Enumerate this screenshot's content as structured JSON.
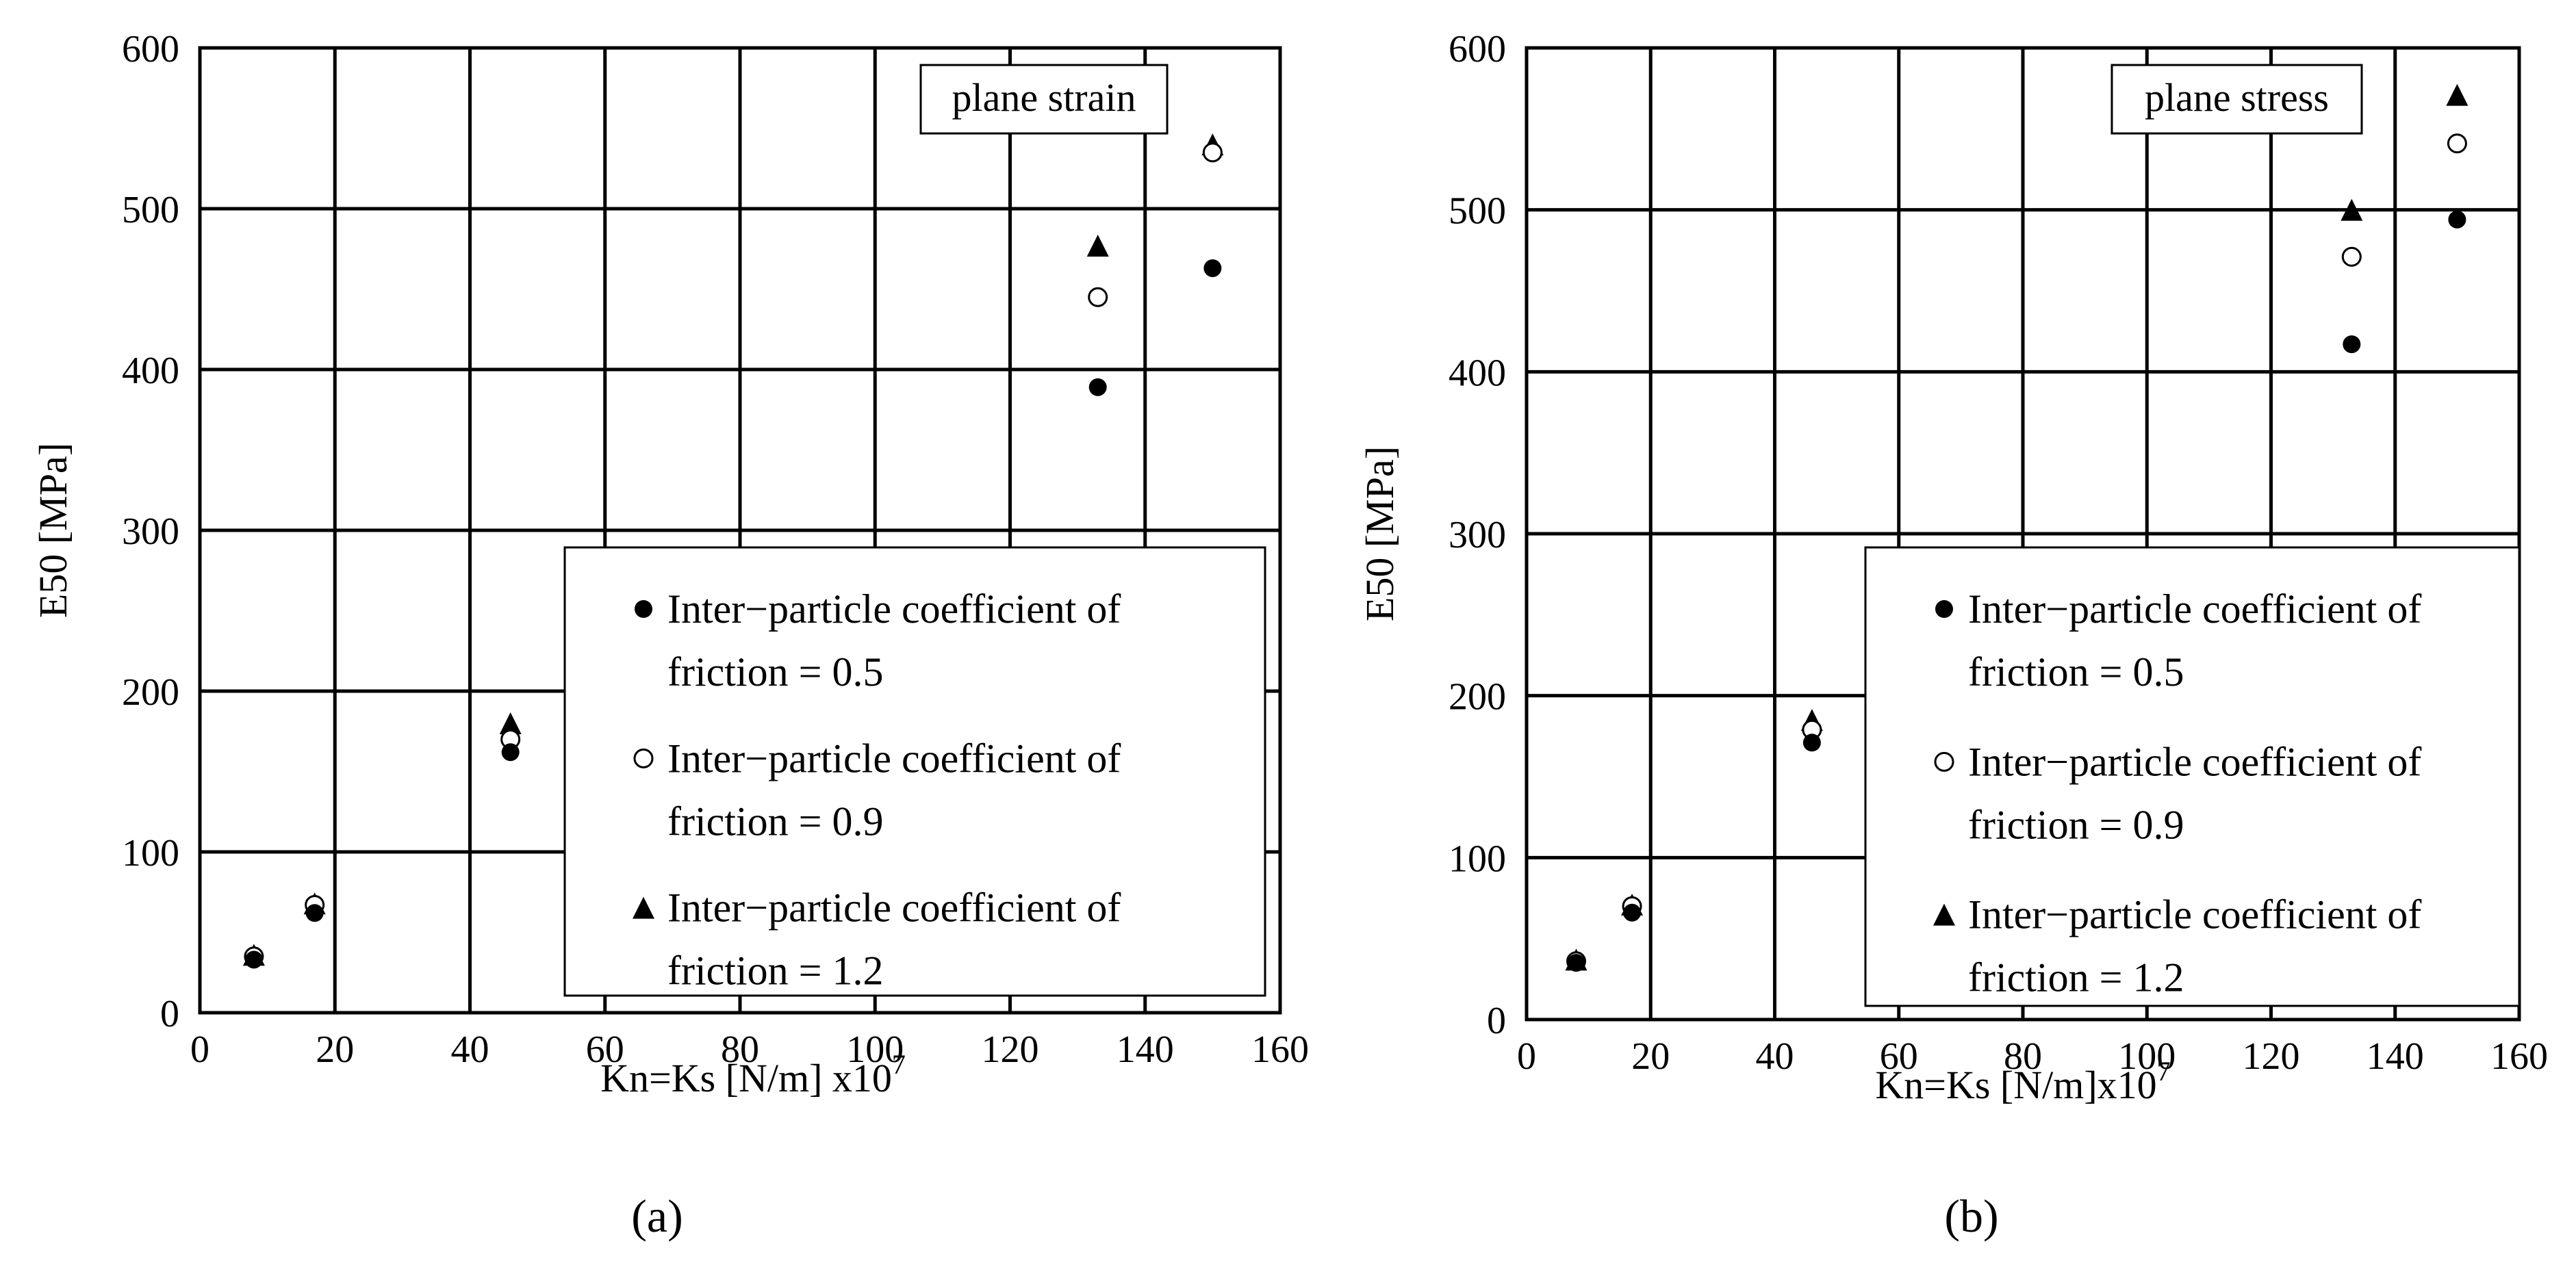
{
  "chart_data": [
    {
      "type": "scatter",
      "panel_label": "(a)",
      "condition": "plane strain",
      "xlabel": "Kn=Ks [N/m] x10",
      "xlabel_exponent": "7",
      "ylabel": "E50 [MPa]",
      "xlim": [
        0,
        160
      ],
      "ylim": [
        0,
        600
      ],
      "xticks": [
        0,
        20,
        40,
        60,
        80,
        100,
        120,
        140,
        160
      ],
      "yticks": [
        0,
        100,
        200,
        300,
        400,
        500,
        600
      ],
      "grid": true,
      "legend_position": "bottom-right",
      "series": [
        {
          "legend_line1": "Inter−particle coefficient of",
          "legend_line2": "friction = 0.5",
          "marker": "filled-circle",
          "x": [
            8,
            17,
            46,
            133,
            150
          ],
          "y": [
            33,
            62,
            162,
            389,
            463
          ]
        },
        {
          "legend_line1": "Inter−particle coefficient of",
          "legend_line2": "friction = 0.9",
          "marker": "open-circle",
          "x": [
            8,
            17,
            46,
            133,
            150
          ],
          "y": [
            35,
            67,
            170,
            445,
            535
          ]
        },
        {
          "legend_line1": "Inter−particle coefficient of",
          "legend_line2": "friction = 1.2",
          "marker": "filled-triangle",
          "x": [
            8,
            17,
            46,
            133,
            150
          ],
          "y": [
            36,
            68,
            180,
            477,
            540
          ]
        }
      ]
    },
    {
      "type": "scatter",
      "panel_label": "(b)",
      "condition": "plane stress",
      "xlabel": "Kn=Ks [N/m]x10",
      "xlabel_exponent": "7",
      "ylabel": "E50 [MPa]",
      "xlim": [
        0,
        160
      ],
      "ylim": [
        0,
        600
      ],
      "xticks": [
        0,
        20,
        40,
        60,
        80,
        100,
        120,
        140,
        160
      ],
      "yticks": [
        0,
        100,
        200,
        300,
        400,
        500,
        600
      ],
      "grid": true,
      "legend_position": "bottom-right",
      "series": [
        {
          "legend_line1": "Inter−particle coefficient of",
          "legend_line2": "friction = 0.5",
          "marker": "filled-circle",
          "x": [
            8,
            17,
            46,
            133,
            150
          ],
          "y": [
            35,
            66,
            171,
            417,
            494
          ]
        },
        {
          "legend_line1": "Inter−particle coefficient of",
          "legend_line2": "friction = 0.9",
          "marker": "open-circle",
          "x": [
            8,
            17,
            46,
            133,
            150
          ],
          "y": [
            36,
            70,
            179,
            471,
            541
          ]
        },
        {
          "legend_line1": "Inter−particle coefficient of",
          "legend_line2": "friction = 1.2",
          "marker": "filled-triangle",
          "x": [
            8,
            17,
            46,
            133,
            150
          ],
          "y": [
            37,
            71,
            185,
            500,
            571
          ]
        }
      ]
    }
  ]
}
